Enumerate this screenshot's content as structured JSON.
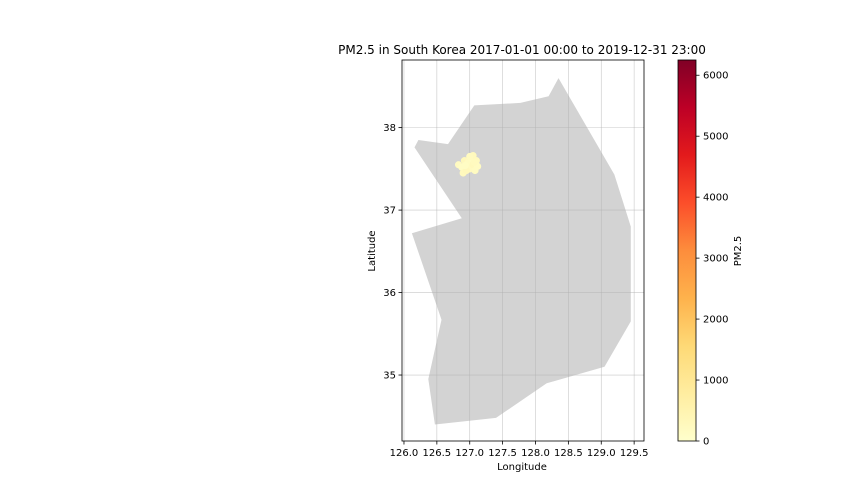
{
  "title": "PM2.5 in South Korea 2017-01-01 00:00 to 2019-12-31 23:00",
  "x_axis": {
    "label": "Longitude",
    "ticks": [
      "126.0",
      "126.5",
      "127.0",
      "127.5",
      "128.0",
      "128.5",
      "129.0",
      "129.5"
    ]
  },
  "y_axis": {
    "label": "Latitude",
    "ticks": [
      "35",
      "36",
      "37",
      "38"
    ]
  },
  "colorbar": {
    "label": "PM2.5",
    "ticks": [
      "0",
      "1000",
      "2000",
      "3000",
      "4000",
      "5000",
      "6000"
    ],
    "range": [
      0,
      6250
    ],
    "colormap": "YlOrRd"
  },
  "chart_data": {
    "type": "scatter",
    "title": "PM2.5 in South Korea 2017-01-01 00:00 to 2019-12-31 23:00",
    "xlabel": "Longitude",
    "ylabel": "Latitude",
    "xlim": [
      125.97,
      129.65
    ],
    "ylim": [
      34.2,
      38.82
    ],
    "grid": true,
    "country_fill": "#d3d3d3",
    "country_outline": [
      [
        126.22,
        37.85
      ],
      [
        126.67,
        37.8
      ],
      [
        127.07,
        38.27
      ],
      [
        127.77,
        38.3
      ],
      [
        128.2,
        38.38
      ],
      [
        128.35,
        38.6
      ],
      [
        129.2,
        37.43
      ],
      [
        129.45,
        36.8
      ],
      [
        129.45,
        35.65
      ],
      [
        129.05,
        35.1
      ],
      [
        128.17,
        34.9
      ],
      [
        127.4,
        34.48
      ],
      [
        126.47,
        34.4
      ],
      [
        126.37,
        34.95
      ],
      [
        126.57,
        35.67
      ],
      [
        126.12,
        36.72
      ],
      [
        126.88,
        36.9
      ],
      [
        126.16,
        37.76
      ]
    ],
    "stations": [
      {
        "lon": 126.83,
        "lat": 37.55,
        "pm25": 200
      },
      {
        "lon": 126.88,
        "lat": 37.52,
        "pm25": 150
      },
      {
        "lon": 126.92,
        "lat": 37.6,
        "pm25": 300
      },
      {
        "lon": 126.9,
        "lat": 37.45,
        "pm25": 250
      },
      {
        "lon": 126.97,
        "lat": 37.57,
        "pm25": 180
      },
      {
        "lon": 127.0,
        "lat": 37.5,
        "pm25": 220
      },
      {
        "lon": 127.03,
        "lat": 37.62,
        "pm25": 160
      },
      {
        "lon": 127.05,
        "lat": 37.55,
        "pm25": 280
      },
      {
        "lon": 127.08,
        "lat": 37.48,
        "pm25": 190
      },
      {
        "lon": 127.1,
        "lat": 37.6,
        "pm25": 240
      },
      {
        "lon": 127.12,
        "lat": 37.53,
        "pm25": 170
      },
      {
        "lon": 127.05,
        "lat": 37.66,
        "pm25": 260
      },
      {
        "lon": 126.95,
        "lat": 37.48,
        "pm25": 310
      },
      {
        "lon": 127.0,
        "lat": 37.65,
        "pm25": 210
      },
      {
        "lon": 126.93,
        "lat": 37.54,
        "pm25": 140
      },
      {
        "lon": 127.07,
        "lat": 37.58,
        "pm25": 230
      }
    ]
  }
}
